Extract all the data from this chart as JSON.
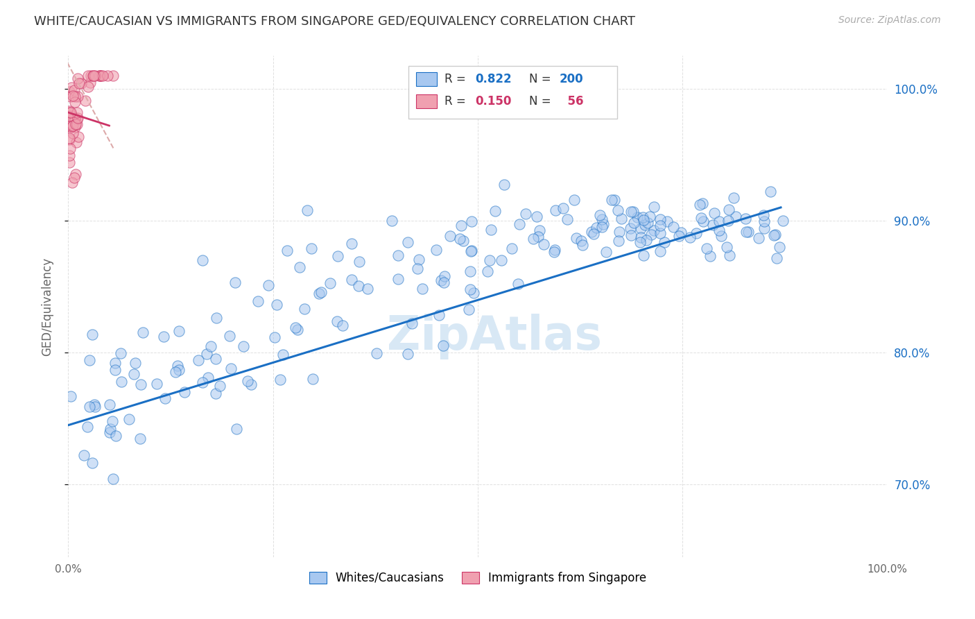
{
  "title": "WHITE/CAUCASIAN VS IMMIGRANTS FROM SINGAPORE GED/EQUIVALENCY CORRELATION CHART",
  "source": "Source: ZipAtlas.com",
  "ylabel": "GED/Equivalency",
  "watermark": "ZipAtlas",
  "blue_color": "#a8c8f0",
  "pink_color": "#f0a0b0",
  "blue_line_color": "#1a6fc4",
  "pink_line_color": "#cc3366",
  "pink_line_dashed_color": "#ddaaaa",
  "background_color": "#ffffff",
  "grid_color": "#e0e0e0",
  "xmin": 0.0,
  "xmax": 1.0,
  "ymin": 0.645,
  "ymax": 1.025,
  "right_yticks": [
    0.7,
    0.8,
    0.9,
    1.0
  ],
  "right_yticklabels": [
    "70.0%",
    "80.0%",
    "90.0%",
    "100.0%"
  ],
  "R_blue": 0.822,
  "N_blue": 200,
  "R_pink": 0.15,
  "N_pink": 56
}
